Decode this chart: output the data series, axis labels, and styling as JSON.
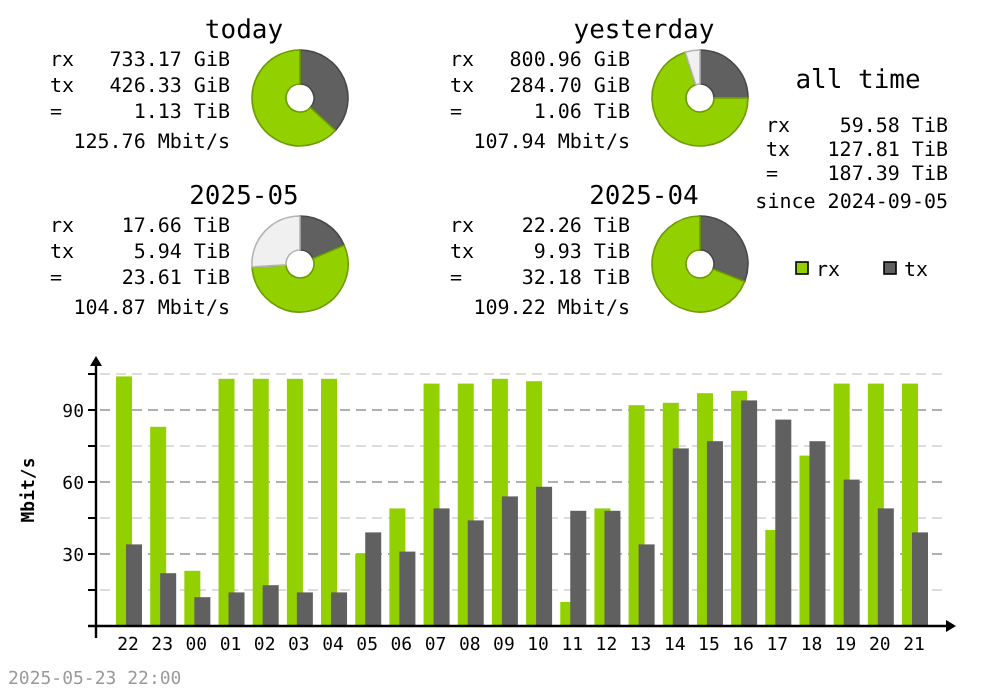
{
  "chart_data": [
    {
      "type": "donut",
      "title": "today",
      "categories": [
        null,
        null
      ],
      "values": [
        36.8,
        63.2
      ],
      "colors": [
        "#606060",
        "#92d000"
      ],
      "annotations": [
        "rx  733.17 GiB",
        "tx  426.33 GiB",
        "=  1.13 TiB",
        "125.76 Mbit/s"
      ]
    },
    {
      "type": "donut",
      "title": "yesterday",
      "categories": [
        null,
        null,
        null
      ],
      "values": [
        24.9,
        70.1,
        5.0
      ],
      "colors": [
        "#606060",
        "#92d000",
        "#f0f0f0"
      ],
      "annotations": [
        "rx  800.96 GiB",
        "tx  284.70 GiB",
        "=  1.06 TiB",
        "107.94 Mbit/s"
      ]
    },
    {
      "type": "donut",
      "title": "2025-05",
      "categories": [
        null,
        null,
        null
      ],
      "values": [
        18.6,
        55.4,
        26.0
      ],
      "colors": [
        "#606060",
        "#92d000",
        "#f0f0f0"
      ],
      "annotations": [
        "rx  17.66 TiB",
        "tx  5.94 TiB",
        "=  23.61 TiB",
        "104.87 Mbit/s"
      ]
    },
    {
      "type": "donut",
      "title": "2025-04",
      "categories": [
        null,
        null
      ],
      "values": [
        30.9,
        69.1
      ],
      "colors": [
        "#606060",
        "#92d000"
      ],
      "annotations": [
        "rx  22.26 TiB",
        "tx  9.93 TiB",
        "=  32.18 TiB",
        "109.22 Mbit/s"
      ]
    },
    {
      "type": "other",
      "title": "all time",
      "annotations": [
        "rx  59.58 TiB",
        "tx  127.81 TiB",
        "=  187.39 TiB",
        "since 2024-09-05"
      ]
    },
    {
      "type": "bar",
      "ylabel": "Mbit/s",
      "categories": [
        "22",
        "23",
        "00",
        "01",
        "02",
        "03",
        "04",
        "05",
        "06",
        "07",
        "08",
        "09",
        "10",
        "11",
        "12",
        "13",
        "14",
        "15",
        "16",
        "17",
        "18",
        "19",
        "20",
        "21"
      ],
      "series": [
        {
          "name": "rx",
          "color": "#92d000",
          "values": [
            104,
            83,
            23,
            103,
            103,
            103,
            103,
            30,
            49,
            101,
            101,
            103,
            102,
            10,
            49,
            92,
            93,
            97,
            98,
            40,
            71,
            101,
            101,
            101
          ]
        },
        {
          "name": "tx",
          "color": "#606060",
          "values": [
            34,
            22,
            12,
            14,
            17,
            14,
            14,
            39,
            31,
            49,
            44,
            54,
            58,
            48,
            48,
            34,
            74,
            77,
            94,
            86,
            77,
            61,
            49,
            39
          ]
        }
      ],
      "ylim": [
        0,
        110
      ],
      "yticks": [
        {
          "value": 15,
          "label": null
        },
        30,
        {
          "value": 45,
          "label": null
        },
        60,
        {
          "value": 75,
          "label": null
        },
        90,
        {
          "value": 105,
          "label": null
        }
      ],
      "grid": "y",
      "legend": "top right",
      "annotations": [
        "2025-05-23 22:00"
      ]
    }
  ]
}
